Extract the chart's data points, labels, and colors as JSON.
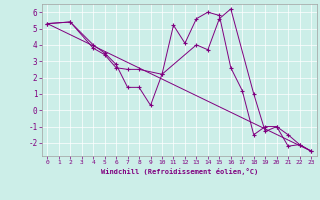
{
  "xlabel": "Windchill (Refroidissement éolien,°C)",
  "background_color": "#cceee8",
  "line_color": "#800080",
  "xlim": [
    -0.5,
    23.5
  ],
  "ylim": [
    -2.8,
    6.5
  ],
  "xticks": [
    0,
    1,
    2,
    3,
    4,
    5,
    6,
    7,
    8,
    9,
    10,
    11,
    12,
    13,
    14,
    15,
    16,
    17,
    18,
    19,
    20,
    21,
    22,
    23
  ],
  "yticks": [
    -2,
    -1,
    0,
    1,
    2,
    3,
    4,
    5,
    6
  ],
  "series": [
    {
      "x": [
        0,
        2,
        4,
        5,
        6,
        7,
        8,
        9,
        10,
        11,
        12,
        13,
        14,
        15,
        16,
        17,
        18,
        19,
        20,
        21,
        22,
        23
      ],
      "y": [
        5.3,
        5.4,
        4.0,
        3.5,
        2.8,
        1.4,
        1.4,
        0.3,
        2.2,
        5.2,
        4.1,
        5.6,
        6.0,
        5.8,
        2.6,
        1.2,
        -1.5,
        -1.0,
        -1.0,
        -2.2,
        -2.1,
        -2.5
      ]
    },
    {
      "x": [
        0,
        2,
        4,
        5,
        6,
        7,
        8,
        10,
        13,
        14,
        15,
        16,
        18,
        19,
        20,
        21,
        22,
        23
      ],
      "y": [
        5.3,
        5.4,
        3.8,
        3.4,
        2.6,
        2.5,
        2.5,
        2.2,
        4.0,
        3.7,
        5.6,
        6.2,
        1.0,
        -1.3,
        -1.0,
        -1.5,
        -2.1,
        -2.5
      ]
    },
    {
      "x": [
        0,
        23
      ],
      "y": [
        5.3,
        -2.5
      ]
    }
  ]
}
